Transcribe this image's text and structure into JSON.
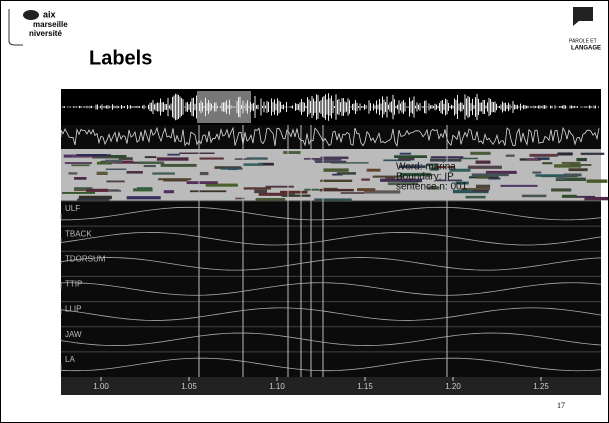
{
  "header": {
    "logo_left": [
      "aix",
      "marseille",
      "niversité"
    ],
    "title": "Labels",
    "logo_right": [
      "PAROLE ET",
      "LANGAGE"
    ]
  },
  "figure": {
    "annotation": [
      "Word: marina",
      "Boundary: IP",
      "sentence n: 001"
    ],
    "tracks": [
      "ULF",
      "TBACK",
      "TDORSUM",
      "TTIP",
      "LLIP",
      "JAW",
      "LA"
    ],
    "time_labels": [
      "1.00",
      "1.05",
      "1.10",
      "1.15",
      "1.20",
      "1.25"
    ]
  },
  "footer": {
    "page": "17"
  }
}
